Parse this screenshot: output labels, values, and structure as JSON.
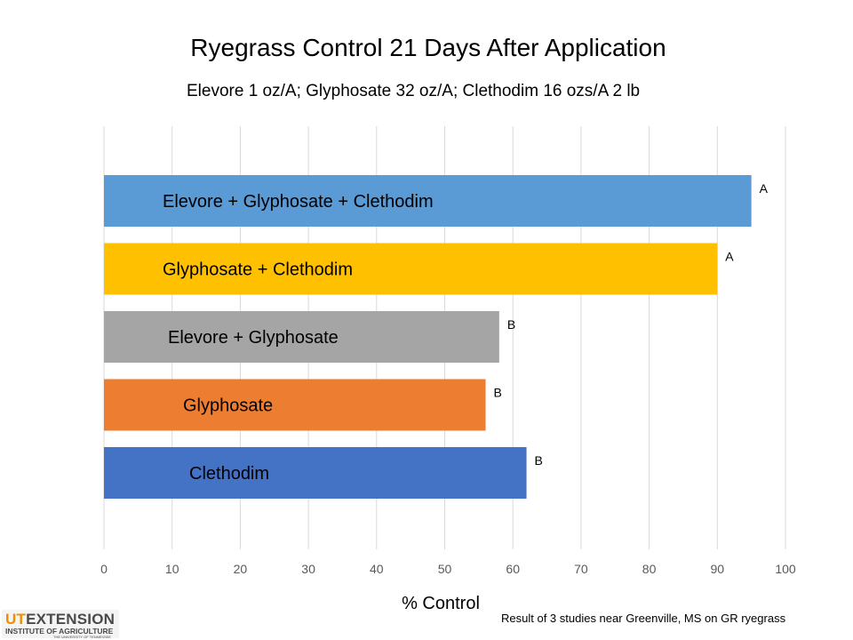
{
  "slide": {
    "title": "Ryegrass Control 21 Days After Application",
    "subtitle": "Elevore 1 oz/A; Glyphosate 32 oz/A; Clethodim 16 ozs/A 2 lb",
    "footnote": "Result of 3 studies near Greenville, MS on GR ryegrass"
  },
  "logo": {
    "ut": "UT",
    "ext": "EXTENSION",
    "line2": "INSTITUTE OF AGRICULTURE",
    "line3": "THE UNIVERSITY OF TENNESSEE"
  },
  "chart_data": {
    "type": "bar",
    "orientation": "horizontal",
    "title": "",
    "xlabel": "% Control",
    "ylabel": "",
    "xlim": [
      0,
      100
    ],
    "x_ticks": [
      0,
      10,
      20,
      30,
      40,
      50,
      60,
      70,
      80,
      90,
      100
    ],
    "grid": "vertical gridlines",
    "categories": [
      "Elevore + Glyphosate + Clethodim",
      "Glyphosate + Clethodim",
      "Elevore + Glyphosate",
      "Glyphosate",
      "Clethodim"
    ],
    "values": [
      95,
      90,
      58,
      56,
      62
    ],
    "significance_letters": [
      "A",
      "A",
      "B",
      "B",
      "B"
    ],
    "colors": [
      "#5b9bd5",
      "#ffc000",
      "#a5a5a5",
      "#ed7d31",
      "#4472c4"
    ]
  }
}
